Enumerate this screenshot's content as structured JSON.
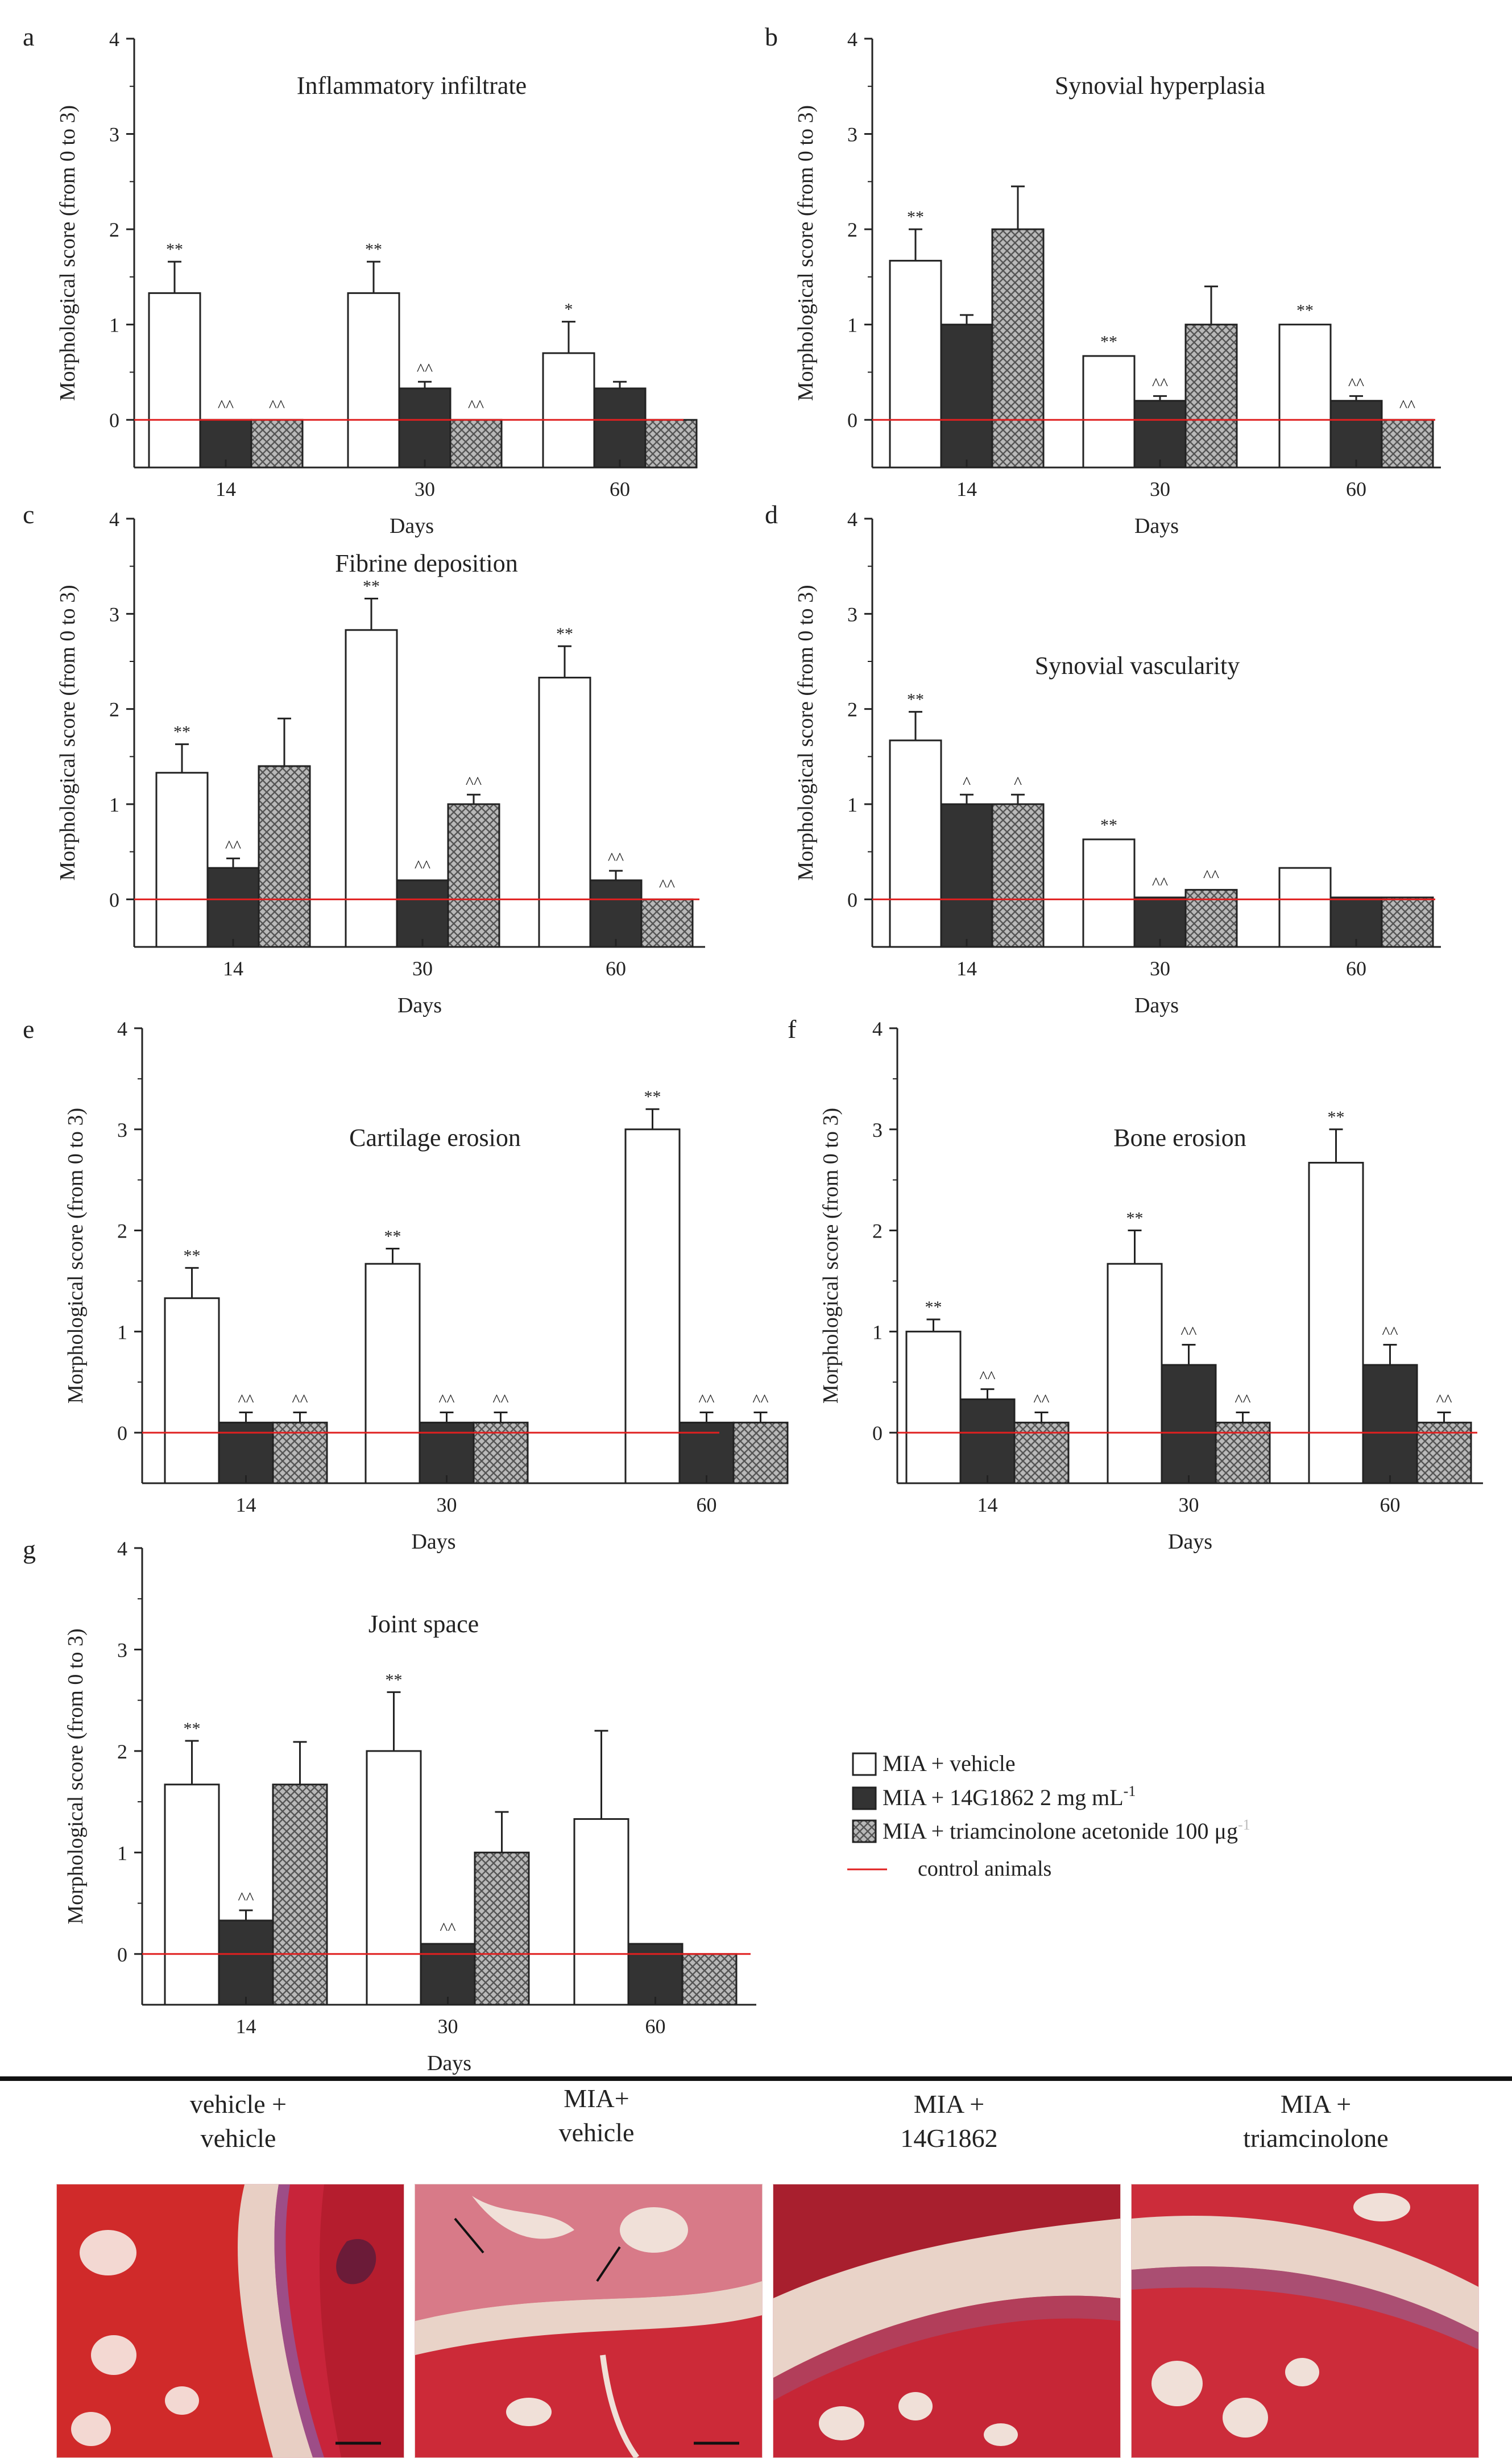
{
  "chart_data": [
    {
      "panel_letter": "a",
      "title": "Inflammatory  infiltrate",
      "type": "bar",
      "ylabel": "Morphological score (from 0 to 3)",
      "xlabel": "Days",
      "yticks": [
        0,
        1,
        2,
        3,
        4
      ],
      "ylim": [
        -0.5,
        4
      ],
      "categories": [
        "14",
        "30",
        "60"
      ],
      "values": [
        [
          1.33,
          0,
          0
        ],
        [
          1.33,
          0.33,
          0
        ],
        [
          0.7,
          0.33,
          0
        ]
      ],
      "errors": [
        [
          0.33,
          0.02,
          0.02
        ],
        [
          0.33,
          0.07,
          0.02
        ],
        [
          0.33,
          0.07,
          0.02
        ]
      ],
      "marks": [
        [
          "**",
          "^^",
          "^^"
        ],
        [
          "**",
          "^^",
          "^^"
        ],
        [
          "*",
          "",
          ""
        ]
      ]
    },
    {
      "panel_letter": "b",
      "title": "Synovial  hyperplasia",
      "type": "bar",
      "ylabel": "Morphological score (from 0 to 3)",
      "xlabel": "Days",
      "yticks": [
        0,
        1,
        2,
        3,
        4
      ],
      "ylim": [
        -0.5,
        4
      ],
      "categories": [
        "14",
        "30",
        "60"
      ],
      "values": [
        [
          1.67,
          1.0,
          2.0
        ],
        [
          0.67,
          0.2,
          1.0
        ],
        [
          1.0,
          0.2,
          0
        ]
      ],
      "errors": [
        [
          0.33,
          0.1,
          0.45
        ],
        [
          0.02,
          0.05,
          0.4
        ],
        [
          0.02,
          0.05,
          0.02
        ]
      ],
      "marks": [
        [
          "**",
          "",
          ""
        ],
        [
          "**",
          "^^",
          ""
        ],
        [
          "**",
          "^^",
          "^^"
        ]
      ]
    },
    {
      "panel_letter": "c",
      "title": "Fibrine deposition",
      "type": "bar",
      "ylabel": "Morphological score (from 0 to 3)",
      "xlabel": "Days",
      "yticks": [
        0,
        1,
        2,
        3,
        4
      ],
      "ylim": [
        -0.5,
        4
      ],
      "categories": [
        "14",
        "30",
        "60"
      ],
      "values": [
        [
          1.33,
          0.33,
          1.4
        ],
        [
          2.83,
          0.2,
          1.0
        ],
        [
          2.33,
          0.2,
          0
        ]
      ],
      "errors": [
        [
          0.3,
          0.1,
          0.5
        ],
        [
          0.33,
          0.02,
          0.1
        ],
        [
          0.33,
          0.1,
          0.02
        ]
      ],
      "marks": [
        [
          "**",
          "^^",
          ""
        ],
        [
          "**",
          "^^",
          "^^"
        ],
        [
          "**",
          "^^",
          "^^"
        ]
      ]
    },
    {
      "panel_letter": "d",
      "title": "Synovial  vascularity",
      "type": "bar",
      "ylabel": "Morphological score (from 0 to 3)",
      "xlabel": "Days",
      "yticks": [
        0,
        1,
        2,
        3,
        4
      ],
      "ylim": [
        -0.5,
        4
      ],
      "categories": [
        "14",
        "30",
        "60"
      ],
      "values": [
        [
          1.67,
          1.0,
          1.0
        ],
        [
          0.63,
          0.02,
          0.1
        ],
        [
          0.33,
          0.02,
          0.02
        ]
      ],
      "errors": [
        [
          0.3,
          0.1,
          0.1
        ],
        [
          0.02,
          0.02,
          0.02
        ],
        [
          0.02,
          0.0,
          0.0
        ]
      ],
      "marks": [
        [
          "**",
          "^",
          "^"
        ],
        [
          "**",
          "^^",
          "^^"
        ],
        [
          "",
          "",
          ""
        ]
      ]
    },
    {
      "panel_letter": "e",
      "title": "Cartilage erosion",
      "type": "bar",
      "ylabel": "Morphological score (from 0 to 3)",
      "xlabel": "Days",
      "yticks": [
        0,
        1,
        2,
        3,
        4
      ],
      "ylim": [
        -0.5,
        4
      ],
      "categories": [
        "14",
        "30",
        "60"
      ],
      "values": [
        [
          1.33,
          0.1,
          0.1
        ],
        [
          1.67,
          0.1,
          0.1
        ],
        [
          3.0,
          0.1,
          0.1
        ]
      ],
      "errors": [
        [
          0.3,
          0.1,
          0.1
        ],
        [
          0.15,
          0.1,
          0.1
        ],
        [
          0.2,
          0.1,
          0.1
        ]
      ],
      "marks": [
        [
          "**",
          "^^",
          "^^"
        ],
        [
          "**",
          "^^",
          "^^"
        ],
        [
          "**",
          "^^",
          "^^"
        ]
      ]
    },
    {
      "panel_letter": "f",
      "title": "Bone erosion",
      "type": "bar",
      "ylabel": "Morphological score (from 0 to 3)",
      "xlabel": "Days",
      "yticks": [
        0,
        1,
        2,
        3,
        4
      ],
      "ylim": [
        -0.5,
        4
      ],
      "categories": [
        "14",
        "30",
        "60"
      ],
      "values": [
        [
          1.0,
          0.33,
          0.1
        ],
        [
          1.67,
          0.67,
          0.1
        ],
        [
          2.67,
          0.67,
          0.1
        ]
      ],
      "errors": [
        [
          0.12,
          0.1,
          0.1
        ],
        [
          0.33,
          0.2,
          0.1
        ],
        [
          0.33,
          0.2,
          0.1
        ]
      ],
      "marks": [
        [
          "**",
          "^^",
          "^^"
        ],
        [
          "**",
          "^^",
          "^^"
        ],
        [
          "**",
          "^^",
          "^^"
        ]
      ]
    },
    {
      "panel_letter": "g",
      "title": "Joint space",
      "type": "bar",
      "ylabel": "Morphological score (from 0 to 3)",
      "xlabel": "Days",
      "yticks": [
        0,
        1,
        2,
        3,
        4
      ],
      "ylim": [
        -0.5,
        4
      ],
      "categories": [
        "14",
        "30",
        "60"
      ],
      "values": [
        [
          1.67,
          0.33,
          1.67
        ],
        [
          2.0,
          0.1,
          1.0
        ],
        [
          1.33,
          0.1,
          0
        ]
      ],
      "errors": [
        [
          0.43,
          0.1,
          0.42
        ],
        [
          0.58,
          0.03,
          0.4
        ],
        [
          0.87,
          0.03,
          0.02
        ]
      ],
      "marks": [
        [
          "**",
          "^^",
          ""
        ],
        [
          "**",
          "^^",
          ""
        ],
        [
          "",
          "",
          ""
        ]
      ]
    }
  ],
  "legend": {
    "entries": [
      {
        "label": "MIA + vehicle",
        "style": "open"
      },
      {
        "label": "MIA + 14G1862 2 mg mL",
        "sup": "-1",
        "style": "solid"
      },
      {
        "label": "MIA + triamcinolone acetonide 100 μg",
        "sup": "-1",
        "style": "hatched"
      },
      {
        "label": "control animals",
        "style": "line"
      }
    ]
  },
  "colors": {
    "vehicle": "#ffffff",
    "drug": "#333333",
    "hatch": "#9a9a9a",
    "control_line": "#e02020",
    "mark_sig": "#222222",
    "mark_hat": "#999999"
  },
  "photos": {
    "items": [
      {
        "title_line1": "vehicle +",
        "title_line2": "vehicle"
      },
      {
        "title_line1": "MIA+",
        "title_line2": "vehicle"
      },
      {
        "title_line1": "MIA +",
        "title_line2": "14G1862"
      },
      {
        "title_line1": "MIA +",
        "title_line2": "triamcinolone"
      }
    ]
  }
}
